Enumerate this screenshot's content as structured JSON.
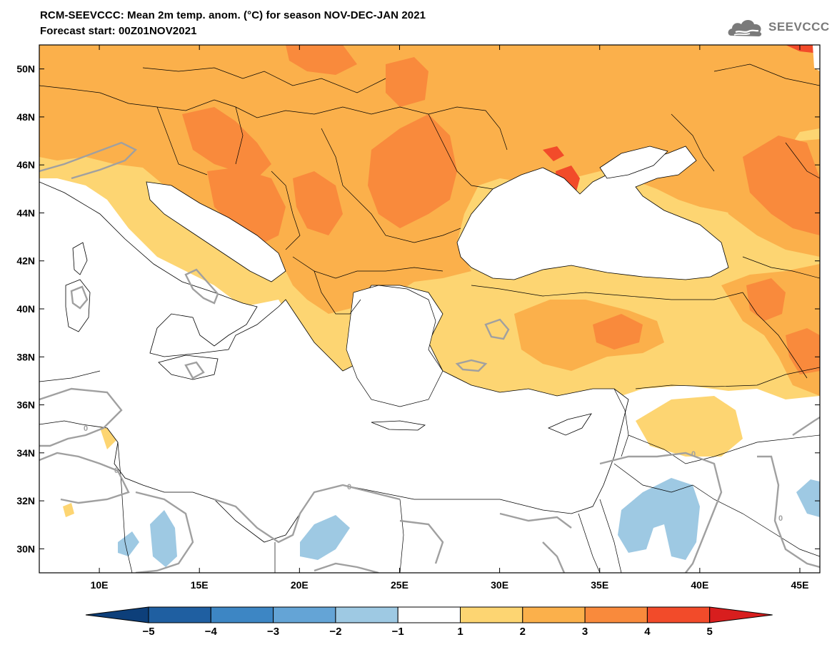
{
  "title": {
    "line1": "RCM-SEEVCCC: Mean 2m temp. anom. (°C) for season NOV-DEC-JAN 2021",
    "line2": "Forecast start: 00Z01NOV2021"
  },
  "logo": {
    "text": "SEEVCCC",
    "icon": "cloud-icon"
  },
  "map": {
    "lon_range": [
      7,
      46
    ],
    "lat_range": [
      29,
      51
    ],
    "lat_ticks": [
      {
        "value": 30,
        "label": "30N"
      },
      {
        "value": 32,
        "label": "32N"
      },
      {
        "value": 34,
        "label": "34N"
      },
      {
        "value": 36,
        "label": "36N"
      },
      {
        "value": 38,
        "label": "38N"
      },
      {
        "value": 40,
        "label": "40N"
      },
      {
        "value": 42,
        "label": "42N"
      },
      {
        "value": 44,
        "label": "44N"
      },
      {
        "value": 46,
        "label": "46N"
      },
      {
        "value": 48,
        "label": "48N"
      },
      {
        "value": 50,
        "label": "50N"
      }
    ],
    "lon_ticks": [
      {
        "value": 10,
        "label": "10E"
      },
      {
        "value": 15,
        "label": "15E"
      },
      {
        "value": 20,
        "label": "20E"
      },
      {
        "value": 25,
        "label": "25E"
      },
      {
        "value": 30,
        "label": "30E"
      },
      {
        "value": 35,
        "label": "35E"
      },
      {
        "value": 40,
        "label": "40E"
      },
      {
        "value": 45,
        "label": "45E"
      }
    ],
    "contour_labels": [
      "0",
      "0",
      "0",
      "0",
      "0"
    ]
  },
  "colorbar": {
    "bins": [
      {
        "from": -5,
        "to": -4,
        "color": "#1f5fa1"
      },
      {
        "from": -4,
        "to": -3,
        "color": "#3d86c4"
      },
      {
        "from": -3,
        "to": -2,
        "color": "#64a4d6"
      },
      {
        "from": -2,
        "to": -1,
        "color": "#9ec9e3"
      },
      {
        "from": -1,
        "to": 1,
        "color": "#ffffff"
      },
      {
        "from": 1,
        "to": 2,
        "color": "#fdd572"
      },
      {
        "from": 2,
        "to": 3,
        "color": "#fbb04b"
      },
      {
        "from": 3,
        "to": 4,
        "color": "#f98a3c"
      },
      {
        "from": 4,
        "to": 5,
        "color": "#f24b2a"
      }
    ],
    "under_color": "#0d3f7a",
    "over_color": "#d81e1e",
    "ticks": [
      "−5",
      "−4",
      "−3",
      "−2",
      "−1",
      "1",
      "2",
      "3",
      "4",
      "5"
    ]
  },
  "colors": {
    "light_orange": "#fdd572",
    "orange": "#fbb04b",
    "dark_orange": "#f98a3c",
    "red": "#f24b2a",
    "light_blue": "#9ec9e3",
    "contour": "#a0a0a0"
  }
}
